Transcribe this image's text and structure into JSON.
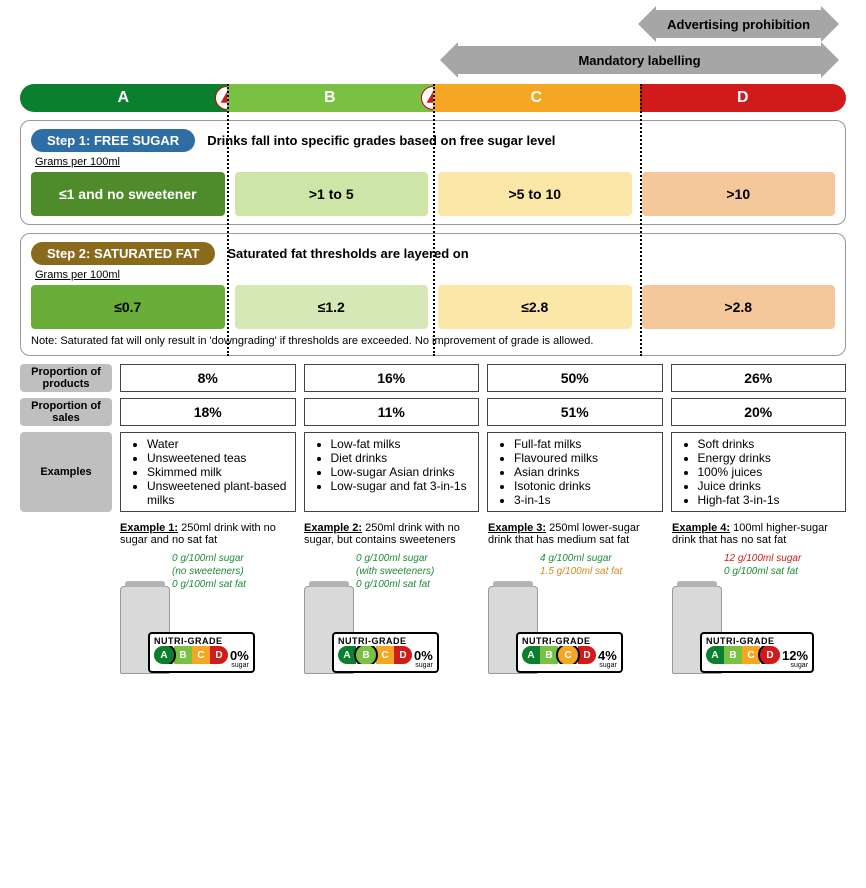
{
  "arrows": {
    "advertising": {
      "label": "Advertising prohibition",
      "left_pct": 77,
      "width_pct": 20
    },
    "labelling": {
      "label": "Mandatory labelling",
      "left_pct": 53,
      "width_pct": 44
    }
  },
  "grades": [
    {
      "letter": "A",
      "color": "#0a7f2e",
      "sugar_color": "#4f8a2b",
      "sugar_text": "#fff",
      "fat_color": "#6aae3a"
    },
    {
      "letter": "B",
      "color": "#7ac143",
      "sugar_color": "#cde6a8",
      "sugar_text": "#000",
      "fat_color": "#d5e8b5"
    },
    {
      "letter": "C",
      "color": "#f5a623",
      "sugar_color": "#fbe7a7",
      "sugar_text": "#000",
      "fat_color": "#fbe7a7"
    },
    {
      "letter": "D",
      "color": "#d11a1a",
      "sugar_color": "#f4c89a",
      "sugar_text": "#000",
      "fat_color": "#f4c89a"
    }
  ],
  "hcs_badge_on": [
    "A",
    "B"
  ],
  "step1": {
    "tag": "Step 1: FREE SUGAR",
    "tag_color": "#2f6ea5",
    "title": "Drinks fall into specific grades based on free sugar level",
    "unit": "Grams per 100ml",
    "thresholds": [
      "≤1 and no sweetener",
      ">1 to 5",
      ">5 to 10",
      ">10"
    ]
  },
  "step2": {
    "tag": "Step 2: SATURATED FAT",
    "tag_color": "#8a6b1e",
    "title": "Saturated fat thresholds are layered on",
    "unit": "Grams per 100ml",
    "thresholds": [
      "≤0.7",
      "≤1.2",
      "≤2.8",
      ">2.8"
    ],
    "note": "Note: Saturated fat will only result in 'downgrading' if thresholds are exceeded. No improvement of grade is allowed."
  },
  "data_rows": {
    "products": {
      "label": "Proportion of products",
      "values": [
        "8%",
        "16%",
        "50%",
        "26%"
      ]
    },
    "sales": {
      "label": "Proportion of sales",
      "values": [
        "18%",
        "11%",
        "51%",
        "20%"
      ]
    },
    "examples": {
      "label": "Examples",
      "lists": [
        [
          "Water",
          "Unsweetened teas",
          "Skimmed milk",
          "Unsweetened plant-based milks"
        ],
        [
          "Low-fat milks",
          "Diet drinks",
          "Low-sugar Asian drinks",
          "Low-sugar and fat 3-in-1s"
        ],
        [
          "Full-fat milks",
          "Flavoured milks",
          "Asian drinks",
          "Isotonic drinks",
          "3-in-1s"
        ],
        [
          "Soft drinks",
          "Energy drinks",
          "100% juices",
          "Juice drinks",
          "High-fat 3-in-1s"
        ]
      ]
    }
  },
  "examples": [
    {
      "title": "Example 1:",
      "desc": "250ml drink with no sugar and no sat fat",
      "metrics": [
        {
          "t": "0 g/100ml sugar",
          "c": "#1e8a3a"
        },
        {
          "t": "(no sweeteners)",
          "c": "#1e8a3a"
        },
        {
          "t": "0 g/100ml sat fat",
          "c": "#1e8a3a"
        }
      ],
      "sel": "A",
      "pct": "0%"
    },
    {
      "title": "Example 2:",
      "desc": "250ml drink with no sugar, but contains sweeteners",
      "metrics": [
        {
          "t": "0 g/100ml sugar",
          "c": "#1e8a3a"
        },
        {
          "t": "(with sweeteners)",
          "c": "#1e8a3a"
        },
        {
          "t": "0 g/100ml sat fat",
          "c": "#1e8a3a"
        }
      ],
      "sel": "B",
      "pct": "0%"
    },
    {
      "title": "Example 3:",
      "desc": "250ml lower-sugar drink that has medium sat fat",
      "metrics": [
        {
          "t": "4 g/100ml sugar",
          "c": "#1e8a3a"
        },
        {
          "t": "1.5 g/100ml sat fat",
          "c": "#d58a1b"
        }
      ],
      "sel": "C",
      "pct": "4%"
    },
    {
      "title": "Example 4:",
      "desc": "100ml higher-sugar drink that has no sat fat",
      "metrics": [
        {
          "t": "12 g/100ml sugar",
          "c": "#d11a1a"
        },
        {
          "t": "0 g/100ml sat fat",
          "c": "#1e8a3a"
        }
      ],
      "sel": "D",
      "pct": "12%"
    }
  ],
  "nutri_title": "NUTRI-GRADE",
  "nutri_sub": "sugar"
}
